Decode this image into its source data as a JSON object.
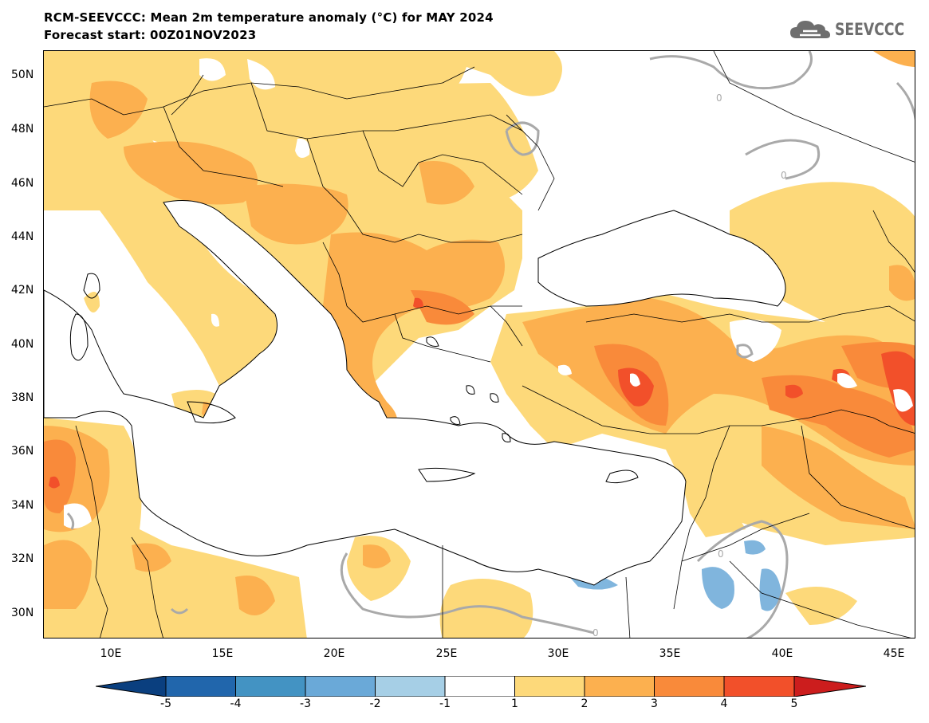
{
  "header": {
    "title": "RCM-SEEVCCC: Mean 2m temperature anomaly (°C) for MAY 2024",
    "subtitle": "Forecast start: 00Z01NOV2023",
    "logo_text": "SEEVCCC",
    "logo_icon": "cloud-icon"
  },
  "map": {
    "lat_labels": [
      "50N",
      "48N",
      "46N",
      "44N",
      "42N",
      "40N",
      "38N",
      "36N",
      "34N",
      "32N",
      "30N"
    ],
    "lon_labels": [
      "10E",
      "15E",
      "20E",
      "25E",
      "30E",
      "35E",
      "40E",
      "45E"
    ],
    "contour_label": "0"
  },
  "colorbar": {
    "labels": [
      "-5",
      "-4",
      "-3",
      "-2",
      "-1",
      "1",
      "2",
      "3",
      "4",
      "5"
    ],
    "colors": [
      "#0a3f7f",
      "#2166ac",
      "#4393c3",
      "#6aa9d8",
      "#a6cfe6",
      "#ffffff",
      "#fdd97a",
      "#fcb04f",
      "#f98a3a",
      "#f2502a",
      "#cc1d1d"
    ]
  }
}
